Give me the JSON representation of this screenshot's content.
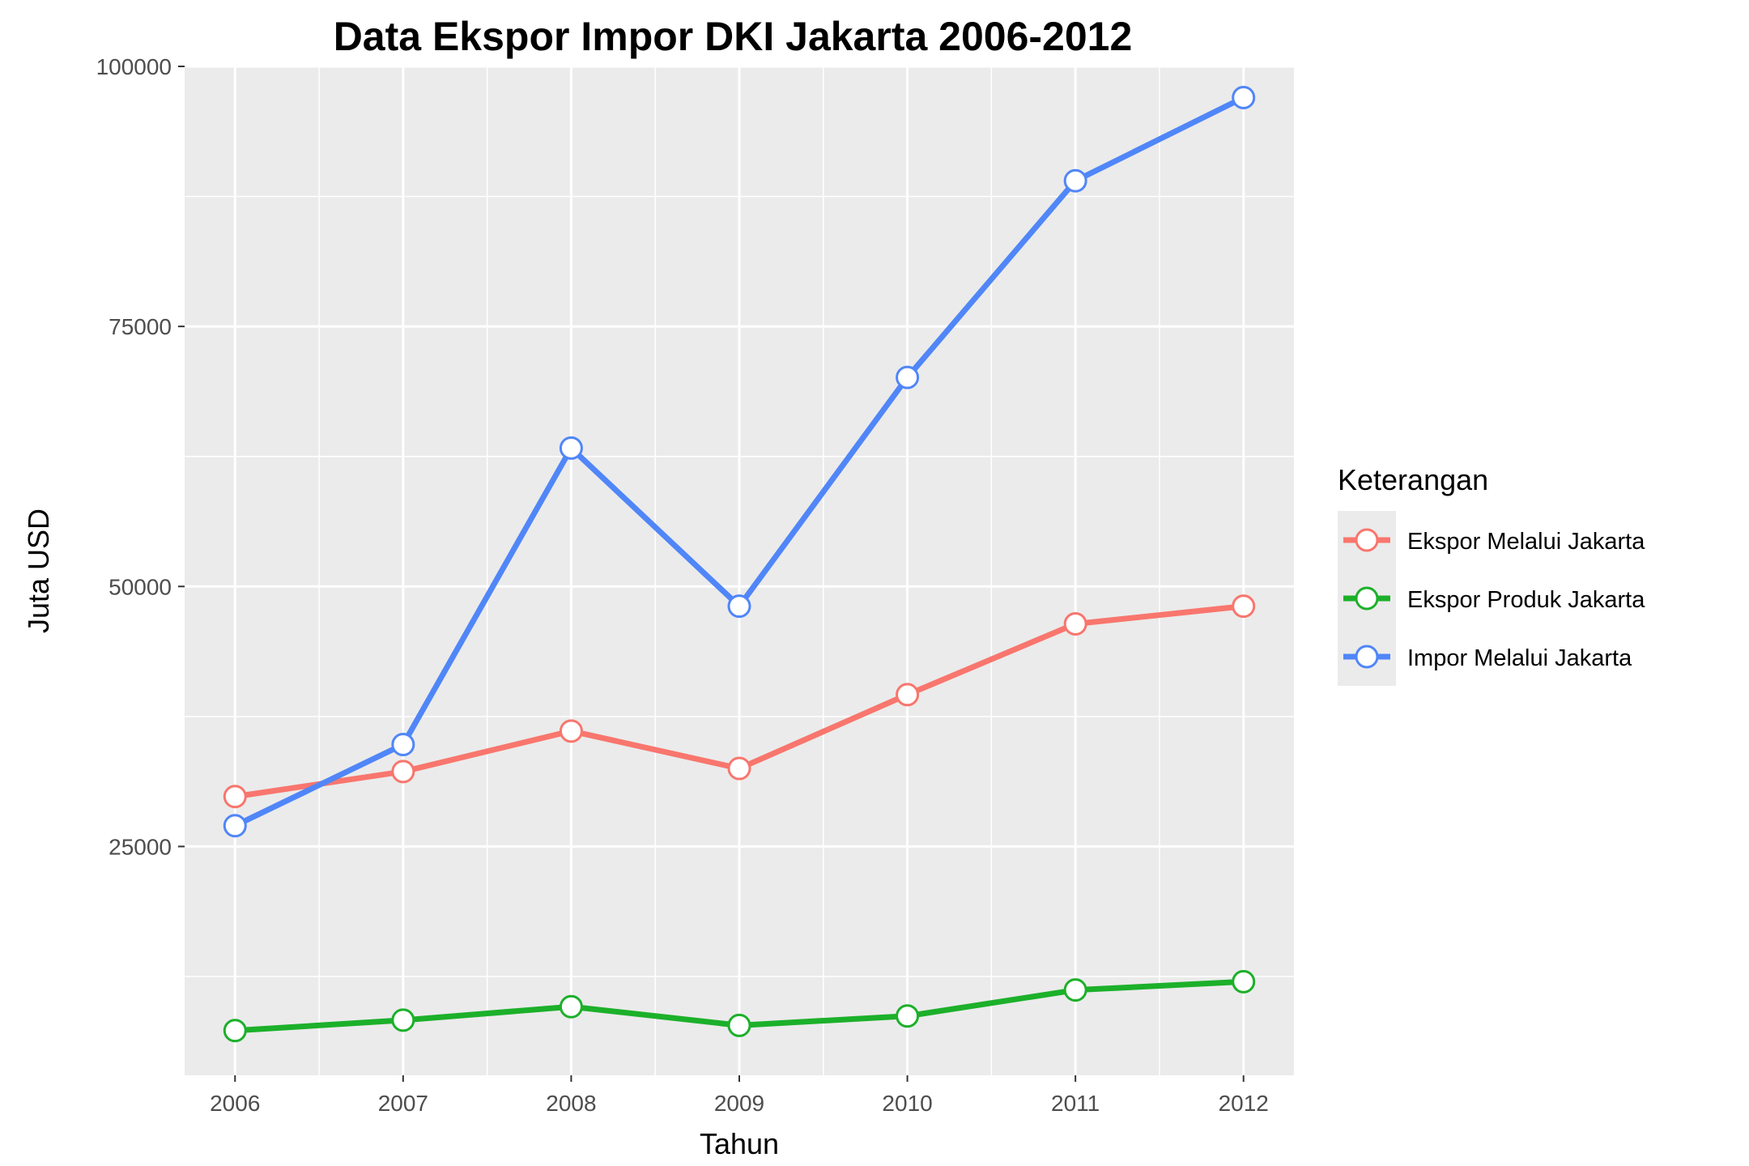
{
  "chart_data": {
    "type": "line",
    "title": "Data Ekspor Impor DKI Jakarta 2006-2012",
    "xlabel": "Tahun",
    "ylabel": "Juta USD",
    "x": [
      2006,
      2007,
      2008,
      2009,
      2010,
      2011,
      2012
    ],
    "x_tick_labels": [
      "2006",
      "2007",
      "2008",
      "2009",
      "2010",
      "2011",
      "2012"
    ],
    "xlim": [
      2005.7,
      2012.3
    ],
    "ylim": [
      3000,
      100000
    ],
    "y_ticks": [
      25000,
      50000,
      75000,
      100000
    ],
    "y_tick_labels": [
      "25000",
      "50000",
      "75000",
      "100000"
    ],
    "grid": true,
    "legend": {
      "title": "Keterangan",
      "placement": "right"
    },
    "series": [
      {
        "name": "Ekspor Melalui Jakarta",
        "color": "#f8766d",
        "values": [
          29800,
          32200,
          36100,
          32500,
          39600,
          46400,
          48100
        ]
      },
      {
        "name": "Ekspor Produk Jakarta",
        "color": "#1cb02a",
        "values": [
          7300,
          8300,
          9600,
          7800,
          8700,
          11200,
          12000
        ]
      },
      {
        "name": "Impor Melalui Jakarta",
        "color": "#5086f8",
        "values": [
          27000,
          34800,
          63300,
          48100,
          70100,
          89000,
          97000
        ]
      }
    ]
  }
}
